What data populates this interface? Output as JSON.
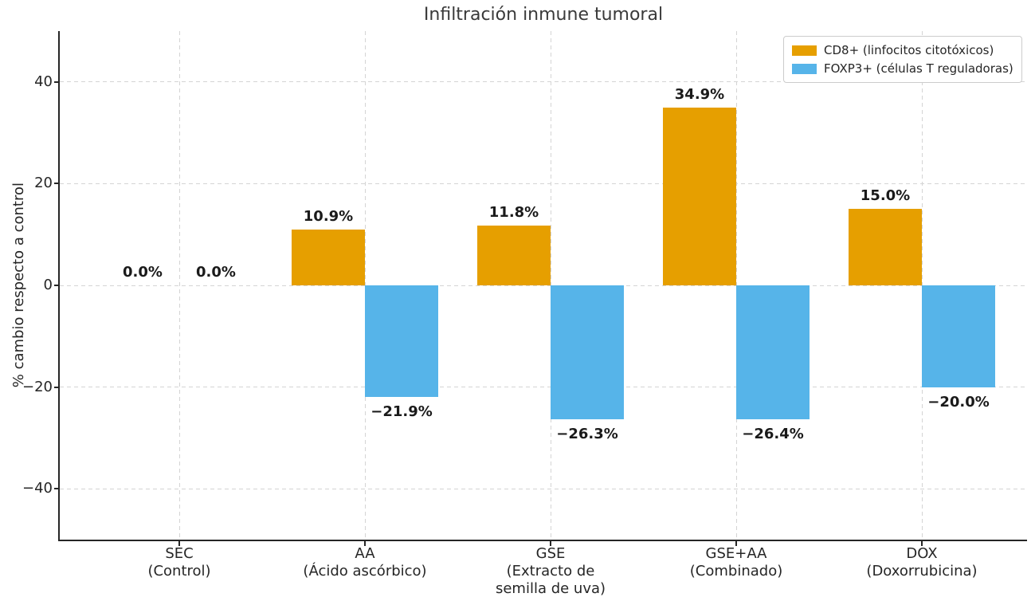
{
  "chart_data": {
    "type": "bar",
    "title": "Infiltración inmune tumoral",
    "ylabel": "% cambio respecto a control",
    "xlabel": "",
    "background_color": "#ffffff",
    "grid": "dashed, both axes, light gray",
    "legend_position": "upper right",
    "ylim": [
      -50,
      50
    ],
    "yticks": [
      {
        "value": 40,
        "label": "40"
      },
      {
        "value": 20,
        "label": "20"
      },
      {
        "value": 0,
        "label": "0"
      },
      {
        "value": -20,
        "label": "−20"
      },
      {
        "value": -40,
        "label": "−40"
      }
    ],
    "categories": [
      {
        "lines": [
          "SEC",
          "(Control)"
        ]
      },
      {
        "lines": [
          "AA",
          "(Ácido ascórbico)"
        ]
      },
      {
        "lines": [
          "GSE",
          "(Extracto de",
          "semilla de uva)"
        ]
      },
      {
        "lines": [
          "GSE+AA",
          "(Combinado)"
        ]
      },
      {
        "lines": [
          "DOX",
          "(Doxorrubicina)"
        ]
      }
    ],
    "series": [
      {
        "name": "CD8+ (linfocitos citotóxicos)",
        "color": "#E69F00",
        "values": [
          0.0,
          10.9,
          11.8,
          34.9,
          15.0
        ],
        "labels": [
          "0.0%",
          "10.9%",
          "11.8%",
          "34.9%",
          "15.0%"
        ]
      },
      {
        "name": "FOXP3+ (células T reguladoras)",
        "color": "#56B4E9",
        "values": [
          0.0,
          -21.9,
          -26.3,
          -26.4,
          -20.0
        ],
        "labels": [
          "0.0%",
          "−21.9%",
          "−26.3%",
          "−26.4%",
          "−20.0%"
        ]
      }
    ]
  }
}
